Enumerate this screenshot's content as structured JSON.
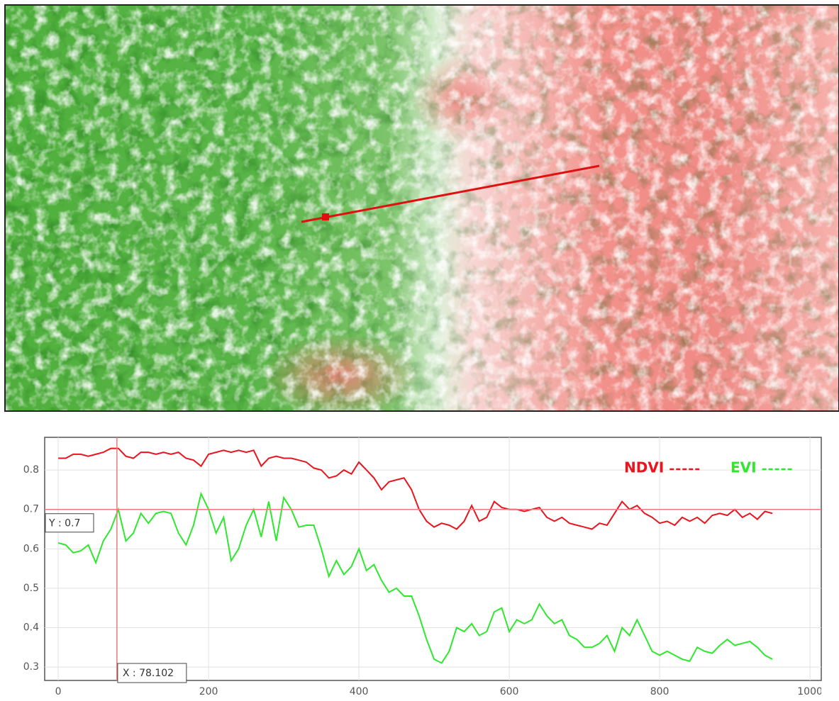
{
  "chart_data": {
    "type": "line",
    "x": [
      0,
      10,
      20,
      30,
      40,
      50,
      60,
      70,
      80,
      90,
      100,
      110,
      120,
      130,
      140,
      150,
      160,
      170,
      180,
      190,
      200,
      210,
      220,
      230,
      240,
      250,
      260,
      270,
      280,
      290,
      300,
      310,
      320,
      330,
      340,
      350,
      360,
      370,
      380,
      390,
      400,
      410,
      420,
      430,
      440,
      450,
      460,
      470,
      480,
      490,
      500,
      510,
      520,
      530,
      540,
      550,
      560,
      570,
      580,
      590,
      600,
      610,
      620,
      630,
      640,
      650,
      660,
      670,
      680,
      690,
      700,
      710,
      720,
      730,
      740,
      750,
      760,
      770,
      780,
      790,
      800,
      810,
      820,
      830,
      840,
      850,
      860,
      870,
      880,
      890,
      900,
      910,
      920,
      930,
      940,
      950
    ],
    "series": [
      {
        "name": "NDVI",
        "color": "#e8141e",
        "values": [
          0.83,
          0.83,
          0.84,
          0.84,
          0.835,
          0.84,
          0.845,
          0.855,
          0.855,
          0.835,
          0.83,
          0.845,
          0.845,
          0.84,
          0.845,
          0.84,
          0.845,
          0.83,
          0.825,
          0.81,
          0.84,
          0.845,
          0.85,
          0.845,
          0.85,
          0.845,
          0.85,
          0.81,
          0.83,
          0.835,
          0.83,
          0.83,
          0.825,
          0.82,
          0.805,
          0.8,
          0.78,
          0.785,
          0.8,
          0.79,
          0.82,
          0.8,
          0.78,
          0.75,
          0.77,
          0.775,
          0.78,
          0.75,
          0.7,
          0.67,
          0.655,
          0.665,
          0.66,
          0.65,
          0.67,
          0.71,
          0.67,
          0.68,
          0.72,
          0.705,
          0.7,
          0.7,
          0.695,
          0.7,
          0.705,
          0.68,
          0.67,
          0.68,
          0.665,
          0.66,
          0.655,
          0.65,
          0.665,
          0.66,
          0.69,
          0.72,
          0.7,
          0.71,
          0.69,
          0.68,
          0.665,
          0.67,
          0.66,
          0.68,
          0.67,
          0.68,
          0.665,
          0.685,
          0.69,
          0.685,
          0.7,
          0.68,
          0.69,
          0.675,
          0.695,
          0.69
        ]
      },
      {
        "name": "EVI",
        "color": "#2ee82e",
        "values": [
          0.615,
          0.61,
          0.59,
          0.595,
          0.61,
          0.565,
          0.62,
          0.65,
          0.7,
          0.62,
          0.64,
          0.69,
          0.665,
          0.69,
          0.695,
          0.69,
          0.64,
          0.61,
          0.66,
          0.74,
          0.7,
          0.64,
          0.68,
          0.57,
          0.6,
          0.66,
          0.7,
          0.63,
          0.72,
          0.62,
          0.73,
          0.7,
          0.655,
          0.66,
          0.66,
          0.6,
          0.53,
          0.57,
          0.535,
          0.555,
          0.6,
          0.545,
          0.56,
          0.52,
          0.49,
          0.5,
          0.48,
          0.48,
          0.43,
          0.37,
          0.32,
          0.31,
          0.34,
          0.4,
          0.39,
          0.41,
          0.38,
          0.39,
          0.44,
          0.45,
          0.39,
          0.42,
          0.41,
          0.42,
          0.46,
          0.43,
          0.41,
          0.42,
          0.38,
          0.37,
          0.35,
          0.35,
          0.36,
          0.38,
          0.34,
          0.4,
          0.38,
          0.42,
          0.38,
          0.34,
          0.33,
          0.34,
          0.33,
          0.32,
          0.315,
          0.35,
          0.34,
          0.335,
          0.355,
          0.37,
          0.355,
          0.36,
          0.365,
          0.35,
          0.33,
          0.32
        ]
      }
    ],
    "xlim": [
      -18,
      1015
    ],
    "ylim": [
      0.266,
      0.883
    ],
    "xticks": [
      0,
      200,
      400,
      600,
      800,
      1000
    ],
    "yticks": [
      0.3,
      0.4,
      0.5,
      0.6,
      0.7,
      0.8
    ],
    "grid": true,
    "legend": "top-right",
    "crosshair": {
      "x": 78.102,
      "y": 0.7,
      "x_label": "X : 78.102",
      "y_label": "Y : 0.7",
      "color": "#f07878"
    }
  }
}
